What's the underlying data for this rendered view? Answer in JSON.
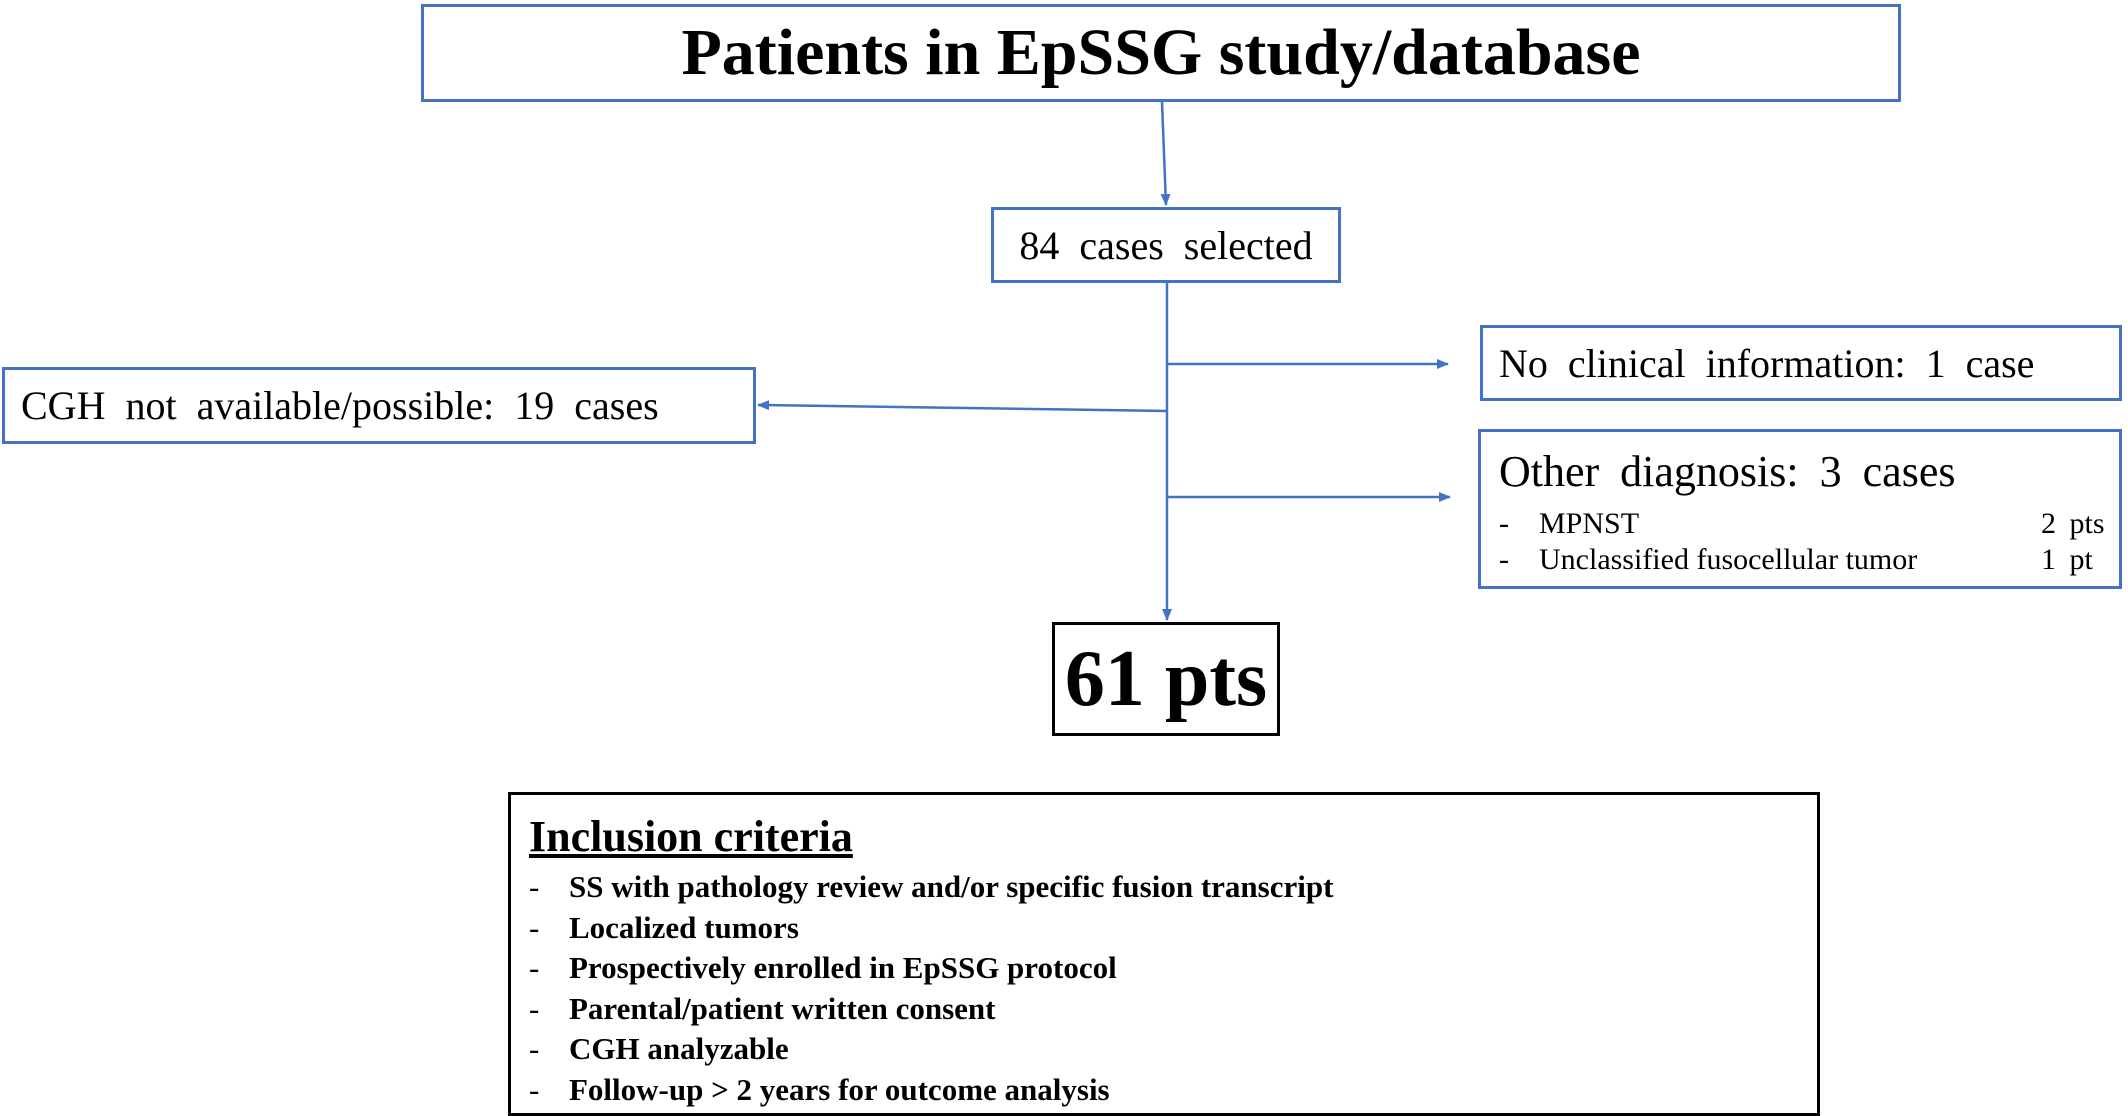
{
  "flowchart": {
    "title": "Patients in EpSSG study/database",
    "selected": "84 cases selected",
    "cgh_excluded": "CGH not available/possible: 19 cases",
    "no_clinical": "No clinical information: 1 case",
    "other_diagnosis": {
      "title": "Other diagnosis: 3 cases",
      "items": [
        {
          "dash": "-",
          "label": "MPNST",
          "count": "2 pts"
        },
        {
          "dash": "-",
          "label": "Unclassified fusocellular tumor",
          "count": "1 pt"
        }
      ]
    },
    "result": "61 pts",
    "inclusion": {
      "title": "Inclusion criteria",
      "criteria": [
        {
          "dash": "-",
          "text": "SS with pathology review and/or specific fusion transcript"
        },
        {
          "dash": "-",
          "text": "Localized tumors"
        },
        {
          "dash": "-",
          "text": "Prospectively enrolled in EpSSG protocol"
        },
        {
          "dash": "-",
          "text": "Parental/patient written consent"
        },
        {
          "dash": "-",
          "text": "CGH analyzable"
        },
        {
          "dash": "-",
          "text": "Follow-up > 2 years for outcome analysis"
        }
      ]
    },
    "colors": {
      "box_border": "#4472c4",
      "arrow": "#4472c4",
      "result_border": "#000000"
    }
  }
}
